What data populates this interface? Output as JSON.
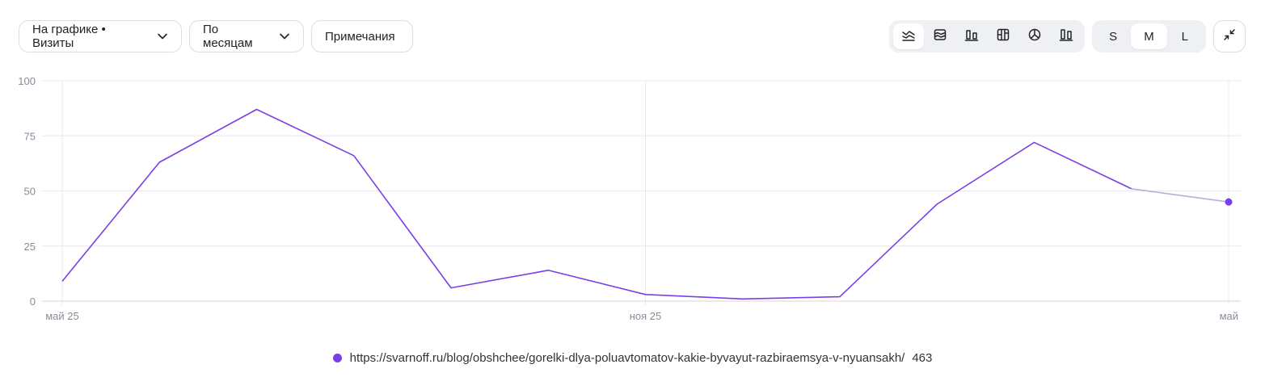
{
  "toolbar": {
    "metric_button": "На графике • Визиты",
    "period_button": "По месяцам",
    "notes_button": "Примечания",
    "chart_types": [
      {
        "icon": "line-chart-icon",
        "active": true
      },
      {
        "icon": "area-chart-icon",
        "active": false
      },
      {
        "icon": "column-chart-icon",
        "active": false
      },
      {
        "icon": "stacked-column-icon",
        "active": false
      },
      {
        "icon": "pie-chart-icon",
        "active": false
      },
      {
        "icon": "bar-chart-icon",
        "active": false
      }
    ],
    "sizes": [
      {
        "label": "S",
        "active": false
      },
      {
        "label": "M",
        "active": true
      },
      {
        "label": "L",
        "active": false
      }
    ],
    "collapse_icon": "collapse-icon"
  },
  "colors": {
    "series": "#7a3fe4",
    "series_tail": "#b8b0d8",
    "grid": "#e8e8ee",
    "axis_text": "#8a8a9a"
  },
  "chart_data": {
    "type": "line",
    "title": "",
    "xlabel": "",
    "ylabel": "",
    "ylim": [
      0,
      100
    ],
    "yticks": [
      0,
      25,
      50,
      75,
      100
    ],
    "x": [
      "2025-05",
      "2025-06",
      "2025-07",
      "2025-08",
      "2025-09",
      "2025-10",
      "2025-11",
      "2025-12",
      "2026-01",
      "2026-02",
      "2026-03",
      "2026-04",
      "2026-05"
    ],
    "xtick_labels": [
      {
        "index": 0,
        "label": "май 25"
      },
      {
        "index": 6,
        "label": "ноя 25"
      },
      {
        "index": 12,
        "label": "май"
      }
    ],
    "series": [
      {
        "name": "https://svarnoff.ru/blog/obshchee/gorelki-dlya-poluavtomatov-kakie-byvayut-razbiraemsya-v-nyuansakh/",
        "values": [
          9,
          63,
          87,
          66,
          6,
          14,
          3,
          1,
          2,
          44,
          72,
          51,
          45
        ],
        "incomplete_from_index": 11
      }
    ],
    "grid": true,
    "legend": "bottom-center"
  },
  "legend": {
    "label": "https://svarnoff.ru/blog/obshchee/gorelki-dlya-poluavtomatov-kakie-byvayut-razbiraemsya-v-nyuansakh/",
    "total": "463"
  }
}
